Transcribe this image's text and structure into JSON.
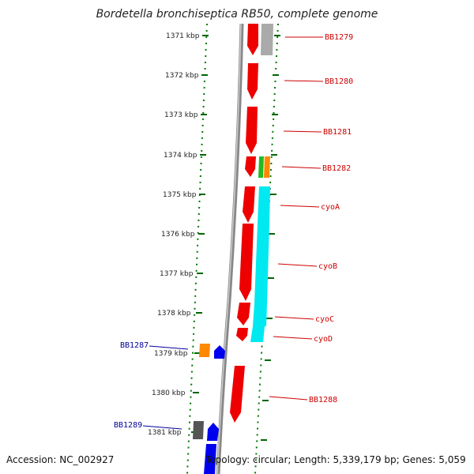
{
  "title": "Bordetella bronchiseptica RB50, complete genome",
  "footer": {
    "accession": "Accession: NC_002927",
    "stats": "Topology: circular; Length: 5,339,179 bp; Genes: 5,059"
  },
  "colors": {
    "gene_red": "#ee0000",
    "gene_cyan": "#00e8f0",
    "gene_blue": "#0000ee",
    "gene_orange": "#ff8800",
    "gene_green": "#22bb22",
    "gene_gray": "#aaaaaa",
    "gene_darkgray": "#555555",
    "label_red": "#cc0000",
    "label_blue": "#000099",
    "dotted_green": "#007700",
    "backbone": "#777777"
  },
  "kbp_ticks": [
    "1371 kbp",
    "1372 kbp",
    "1373 kbp",
    "1374 kbp",
    "1375 kbp",
    "1376 kbp",
    "1377 kbp",
    "1378 kbp",
    "1379 kbp",
    "1380 kbp",
    "1381 kbp"
  ],
  "gene_labels_right": [
    "BB1279",
    "BB1280",
    "BB1281",
    "BB1282",
    "cyoA",
    "cyoB",
    "cyoC",
    "cyoD",
    "BB1288"
  ],
  "gene_labels_left": [
    "BB1287",
    "BB1289"
  ]
}
